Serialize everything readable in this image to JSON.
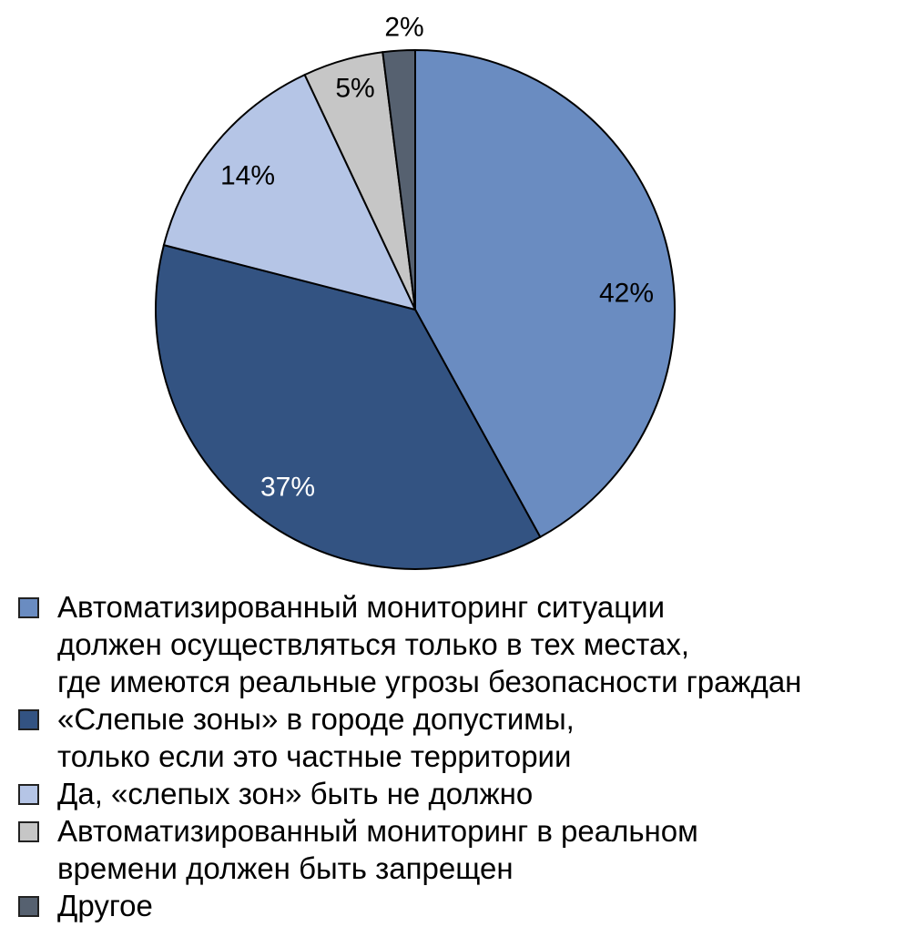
{
  "chart_data": {
    "type": "pie",
    "title": "",
    "start": "top, clockwise",
    "slices": [
      {
        "label": "Автоматизированный мониторинг ситуации\nдолжен осуществляться только в тех местах,\nгде имеются реальные угрозы безопасности граждан",
        "value": 42,
        "value_label": "42%",
        "color": "#6a8cc1",
        "label_color": "#000000"
      },
      {
        "label": "«Слепые зоны» в городе допустимы,\nтолько если это частные территории",
        "value": 37,
        "value_label": "37%",
        "color": "#335382",
        "label_color": "#ffffff"
      },
      {
        "label": "Да, «слепых зон» быть не должно",
        "value": 14,
        "value_label": "14%",
        "color": "#b5c5e6",
        "label_color": "#000000"
      },
      {
        "label": "Автоматизированный мониторинг в реальном\nвремени должен быть запрещен",
        "value": 5,
        "value_label": "5%",
        "color": "#c6c6c6",
        "label_color": "#000000"
      },
      {
        "label": "Другое",
        "value": 2,
        "value_label": "2%",
        "color": "#566170",
        "label_color": "#000000"
      }
    ],
    "legend_position": "bottom"
  }
}
